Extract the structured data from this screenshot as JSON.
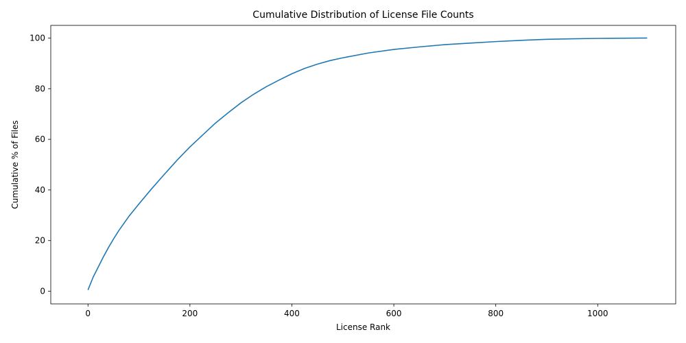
{
  "chart_data": {
    "type": "line",
    "title": "Cumulative Distribution of License File Counts",
    "xlabel": "License Rank",
    "ylabel": "Cumulative % of Files",
    "xlim": [
      -73,
      1153
    ],
    "ylim": [
      -5,
      105
    ],
    "xticks": [
      0,
      200,
      400,
      600,
      800,
      1000
    ],
    "yticks": [
      0,
      20,
      40,
      60,
      80,
      100
    ],
    "grid": false,
    "series": [
      {
        "color": "#1f77b4",
        "x": [
          0,
          10,
          20,
          30,
          40,
          50,
          60,
          80,
          100,
          125,
          150,
          175,
          200,
          225,
          250,
          275,
          300,
          325,
          350,
          375,
          400,
          425,
          450,
          475,
          500,
          550,
          600,
          650,
          700,
          750,
          800,
          850,
          900,
          950,
          1000,
          1050,
          1097
        ],
        "y": [
          0.5,
          5.5,
          9.5,
          13.5,
          17.2,
          20.6,
          23.8,
          29.5,
          34.5,
          40.5,
          46.2,
          51.8,
          57,
          61.7,
          66.4,
          70.5,
          74.4,
          77.8,
          80.8,
          83.4,
          85.9,
          88,
          89.7,
          91.1,
          92.2,
          94.1,
          95.5,
          96.5,
          97.4,
          98,
          98.6,
          99.1,
          99.5,
          99.7,
          99.85,
          99.95,
          100
        ]
      }
    ]
  }
}
